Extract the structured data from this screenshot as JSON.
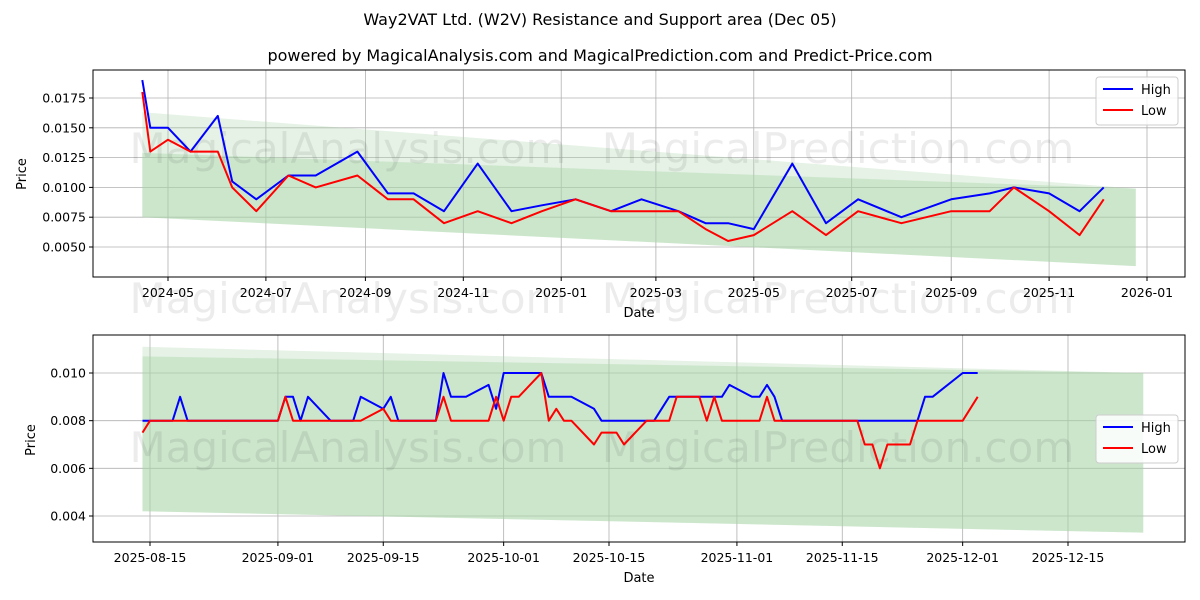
{
  "header": {
    "title": "Way2VAT Ltd. (W2V) Resistance and Support area (Dec 05)",
    "subtitle": "powered by MagicalAnalysis.com and MagicalPrediction.com and Predict-Price.com"
  },
  "watermarks": [
    "MagicalAnalysis.com",
    "MagicalPrediction.com"
  ],
  "colors": {
    "high": "#0000ff",
    "low": "#ff0000",
    "band": "#a8d5a8",
    "grid": "#b0b0b0"
  },
  "chart_data": [
    {
      "type": "line",
      "title": "Way2VAT Ltd. (W2V) Resistance and Support area (Dec 05)",
      "xlabel": "Date",
      "ylabel": "Price",
      "x_ticks": [
        "2024-05",
        "2024-07",
        "2024-09",
        "2024-11",
        "2025-01",
        "2025-03",
        "2025-05",
        "2025-07",
        "2025-09",
        "2025-11",
        "2026-01"
      ],
      "y_ticks": [
        "0.0050",
        "0.0075",
        "0.0100",
        "0.0125",
        "0.0150",
        "0.0175"
      ],
      "ylim": [
        0.0028,
        0.0197
      ],
      "grid": true,
      "legend_position": "upper right",
      "legend": [
        "High",
        "Low"
      ],
      "support_resistance_band": {
        "start": {
          "date": "2024-04-15",
          "upper": 0.0163,
          "lower": 0.0075
        },
        "end": {
          "date": "2025-12-25",
          "upper": 0.0099,
          "lower": 0.0034
        },
        "inner_upper_start": 0.0129
      },
      "x": [
        "2024-04-15",
        "2024-04-20",
        "2024-05-01",
        "2024-05-15",
        "2024-06-01",
        "2024-06-10",
        "2024-06-25",
        "2024-07-15",
        "2024-08-01",
        "2024-08-27",
        "2024-09-15",
        "2024-10-01",
        "2024-10-20",
        "2024-11-10",
        "2024-12-01",
        "2024-12-20",
        "2025-01-10",
        "2025-02-01",
        "2025-02-20",
        "2025-03-15",
        "2025-04-01",
        "2025-04-15",
        "2025-05-01",
        "2025-05-25",
        "2025-06-15",
        "2025-07-05",
        "2025-08-01",
        "2025-09-01",
        "2025-09-25",
        "2025-10-10",
        "2025-11-01",
        "2025-11-20",
        "2025-12-05"
      ],
      "series": [
        {
          "name": "High",
          "values": [
            0.019,
            0.015,
            0.015,
            0.013,
            0.016,
            0.0105,
            0.009,
            0.011,
            0.011,
            0.013,
            0.0095,
            0.0095,
            0.008,
            0.012,
            0.008,
            0.0085,
            0.009,
            0.008,
            0.009,
            0.008,
            0.007,
            0.007,
            0.0065,
            0.012,
            0.007,
            0.009,
            0.0075,
            0.009,
            0.0095,
            0.01,
            0.0095,
            0.008,
            0.01
          ]
        },
        {
          "name": "Low",
          "values": [
            0.018,
            0.013,
            0.014,
            0.013,
            0.013,
            0.01,
            0.008,
            0.011,
            0.01,
            0.011,
            0.009,
            0.009,
            0.007,
            0.008,
            0.007,
            0.008,
            0.009,
            0.008,
            0.008,
            0.008,
            0.0065,
            0.0055,
            0.006,
            0.008,
            0.006,
            0.008,
            0.007,
            0.008,
            0.008,
            0.01,
            0.008,
            0.006,
            0.009
          ]
        }
      ]
    },
    {
      "type": "line",
      "xlabel": "Date",
      "ylabel": "Price",
      "x_ticks": [
        "2025-08-15",
        "2025-09-01",
        "2025-09-15",
        "2025-10-01",
        "2025-10-15",
        "2025-11-01",
        "2025-11-15",
        "2025-12-01",
        "2025-12-15"
      ],
      "y_ticks": [
        "0.004",
        "0.006",
        "0.008",
        "0.010"
      ],
      "ylim": [
        0.0029,
        0.0116
      ],
      "grid": true,
      "legend_position": "center right",
      "legend": [
        "High",
        "Low"
      ],
      "support_resistance_band": {
        "start": {
          "date": "2025-08-14",
          "upper": 0.0111,
          "lower": 0.0042
        },
        "end": {
          "date": "2025-12-25",
          "upper": 0.01,
          "lower": 0.0033
        },
        "inner_upper_start": 0.0107
      },
      "x": [
        "2025-08-14",
        "2025-08-15",
        "2025-08-18",
        "2025-08-19",
        "2025-08-20",
        "2025-09-01",
        "2025-09-02",
        "2025-09-03",
        "2025-09-04",
        "2025-09-05",
        "2025-09-08",
        "2025-09-11",
        "2025-09-12",
        "2025-09-15",
        "2025-09-16",
        "2025-09-17",
        "2025-09-22",
        "2025-09-23",
        "2025-09-24",
        "2025-09-26",
        "2025-09-29",
        "2025-09-30",
        "2025-10-01",
        "2025-10-02",
        "2025-10-03",
        "2025-10-06",
        "2025-10-07",
        "2025-10-08",
        "2025-10-09",
        "2025-10-10",
        "2025-10-13",
        "2025-10-14",
        "2025-10-16",
        "2025-10-17",
        "2025-10-20",
        "2025-10-21",
        "2025-10-23",
        "2025-10-24",
        "2025-10-27",
        "2025-10-28",
        "2025-10-29",
        "2025-10-30",
        "2025-10-31",
        "2025-11-03",
        "2025-11-04",
        "2025-11-05",
        "2025-11-06",
        "2025-11-07",
        "2025-11-17",
        "2025-11-18",
        "2025-11-19",
        "2025-11-20",
        "2025-11-21",
        "2025-11-24",
        "2025-11-25",
        "2025-11-26",
        "2025-11-27",
        "2025-12-01",
        "2025-12-03"
      ],
      "series": [
        {
          "name": "High",
          "values": [
            0.008,
            0.008,
            0.008,
            0.009,
            0.008,
            0.008,
            0.009,
            0.009,
            0.008,
            0.009,
            0.008,
            0.008,
            0.009,
            0.0085,
            0.009,
            0.008,
            0.008,
            0.01,
            0.009,
            0.009,
            0.0095,
            0.0085,
            0.01,
            0.01,
            0.01,
            0.01,
            0.009,
            0.009,
            0.009,
            0.009,
            0.0085,
            0.008,
            0.008,
            0.008,
            0.008,
            0.008,
            0.009,
            0.009,
            0.009,
            0.009,
            0.009,
            0.009,
            0.0095,
            0.009,
            0.009,
            0.0095,
            0.009,
            0.008,
            0.008,
            0.008,
            0.008,
            0.008,
            0.008,
            0.008,
            0.008,
            0.009,
            0.009,
            0.01,
            0.01
          ]
        },
        {
          "name": "Low",
          "values": [
            0.0075,
            0.008,
            0.008,
            0.008,
            0.008,
            0.008,
            0.009,
            0.008,
            0.008,
            0.008,
            0.008,
            0.008,
            0.008,
            0.0085,
            0.008,
            0.008,
            0.008,
            0.009,
            0.008,
            0.008,
            0.008,
            0.009,
            0.008,
            0.009,
            0.009,
            0.01,
            0.008,
            0.0085,
            0.008,
            0.008,
            0.007,
            0.0075,
            0.0075,
            0.007,
            0.008,
            0.008,
            0.008,
            0.009,
            0.009,
            0.008,
            0.009,
            0.008,
            0.008,
            0.008,
            0.008,
            0.009,
            0.008,
            0.008,
            0.008,
            0.007,
            0.007,
            0.006,
            0.007,
            0.007,
            0.008,
            0.008,
            0.008,
            0.008,
            0.009
          ]
        }
      ]
    }
  ]
}
